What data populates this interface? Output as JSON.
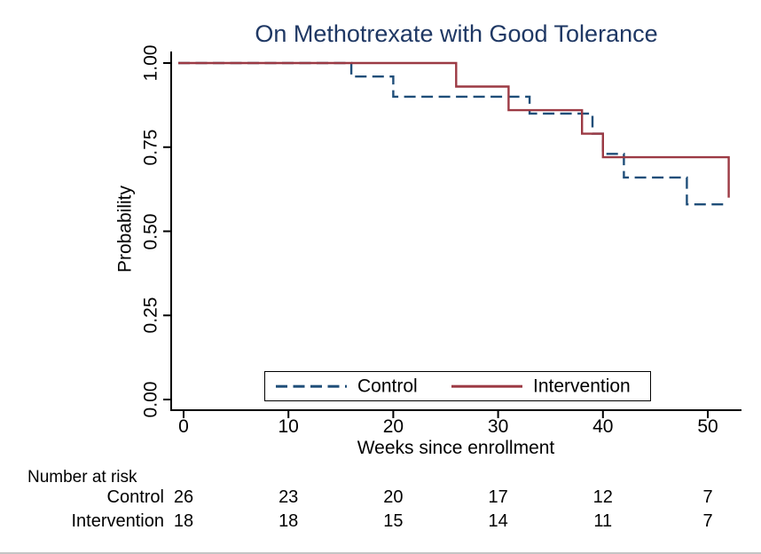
{
  "colors": {
    "title": "#1f3864",
    "axis": "#000000",
    "control_line": "#1f4e79",
    "intervention_line": "#9c3a44"
  },
  "chart_data": {
    "type": "line",
    "subtype": "kaplan-meier-step",
    "title": "On Methotrexate with Good Tolerance",
    "xlabel": "Weeks since enrollment",
    "ylabel": "Probability",
    "xlim": [
      0,
      53
    ],
    "ylim": [
      0,
      1.0
    ],
    "x_ticks": [
      "0",
      "10",
      "20",
      "30",
      "40",
      "50"
    ],
    "x_tick_values": [
      0,
      10,
      20,
      30,
      40,
      50
    ],
    "y_ticks": [
      "0.00",
      "0.25",
      "0.50",
      "0.75",
      "1.00"
    ],
    "y_tick_values": [
      0,
      0.25,
      0.5,
      0.75,
      1
    ],
    "grid": false,
    "legend_position": "bottom-center-inside-box",
    "series": [
      {
        "name": "Control",
        "style": "dashed",
        "color": "#1f4e79",
        "points": [
          [
            0,
            1.0
          ],
          [
            16,
            1.0
          ],
          [
            16,
            0.96
          ],
          [
            20,
            0.96
          ],
          [
            20,
            0.9
          ],
          [
            33,
            0.9
          ],
          [
            33,
            0.85
          ],
          [
            39,
            0.85
          ],
          [
            39,
            0.79
          ],
          [
            40,
            0.79
          ],
          [
            40,
            0.73
          ],
          [
            42,
            0.73
          ],
          [
            42,
            0.66
          ],
          [
            48,
            0.66
          ],
          [
            48,
            0.58
          ],
          [
            52,
            0.58
          ]
        ]
      },
      {
        "name": "Intervention",
        "style": "solid",
        "color": "#9c3a44",
        "points": [
          [
            0,
            1.0
          ],
          [
            26,
            1.0
          ],
          [
            26,
            0.93
          ],
          [
            31,
            0.93
          ],
          [
            31,
            0.86
          ],
          [
            38,
            0.86
          ],
          [
            38,
            0.79
          ],
          [
            40,
            0.79
          ],
          [
            40,
            0.72
          ],
          [
            52,
            0.72
          ],
          [
            52,
            0.6
          ]
        ]
      }
    ]
  },
  "legend": {
    "items": [
      {
        "label": "Control",
        "style": "dashed",
        "color": "#1f4e79"
      },
      {
        "label": "Intervention",
        "style": "solid",
        "color": "#9c3a44"
      }
    ]
  },
  "risk_table": {
    "heading": "Number at risk",
    "time_points": [
      0,
      10,
      20,
      30,
      40,
      50
    ],
    "rows": [
      {
        "label": "Control",
        "counts": [
          "26",
          "23",
          "20",
          "17",
          "12",
          "7"
        ]
      },
      {
        "label": "Intervention",
        "counts": [
          "18",
          "18",
          "15",
          "14",
          "11",
          "7"
        ]
      }
    ]
  }
}
